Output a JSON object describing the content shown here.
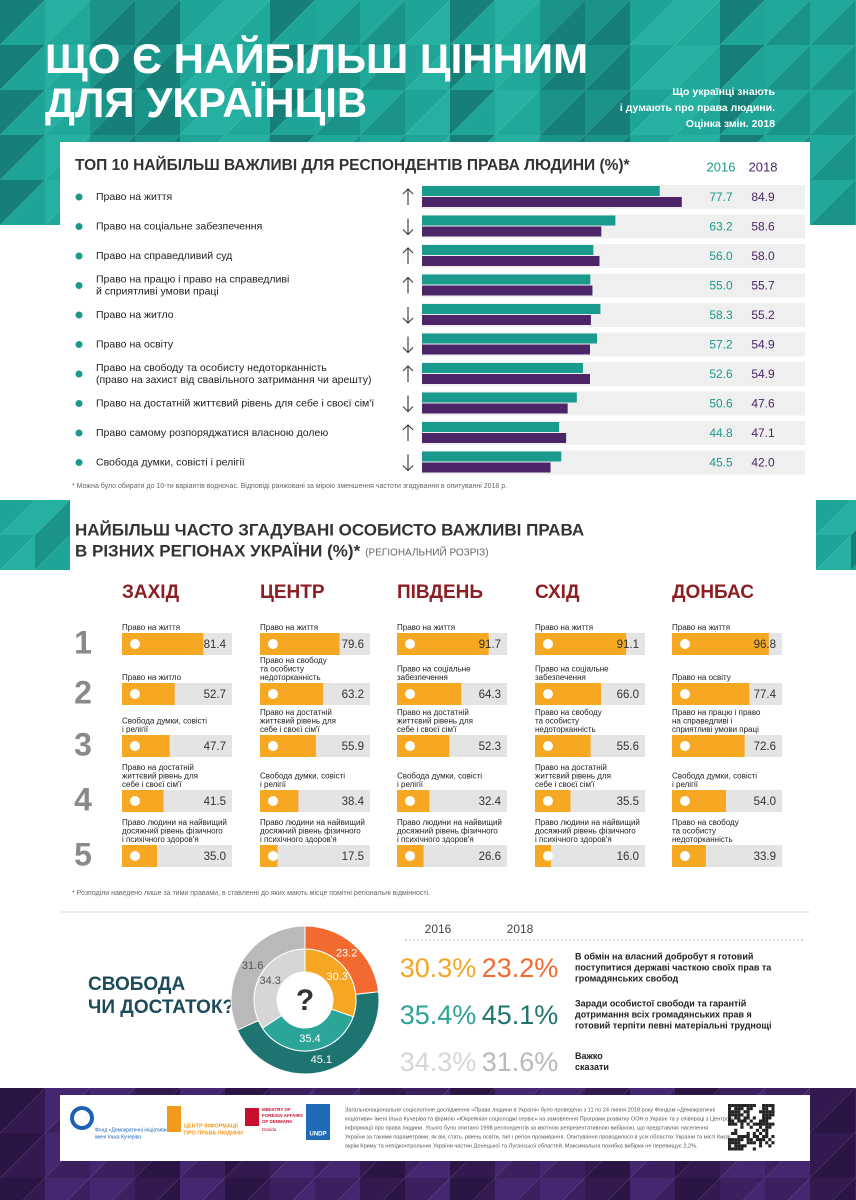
{
  "header": {
    "title": [
      "ЩО Є НАЙБІЛЬШ ЦІННИМ",
      "ДЛЯ УКРАЇНЦІВ"
    ],
    "subtitle": [
      "Що українці знають",
      "і думають про права людини.",
      "Оцінка змін. 2018"
    ]
  },
  "top10": {
    "title": "ТОП 10 НАЙБІЛЬШ ВАЖЛИВІ ДЛЯ РЕСПОНДЕНТІВ ПРАВА ЛЮДИНИ (%)*",
    "years": [
      "2016",
      "2018"
    ],
    "colors": [
      "#1a9a8c",
      "#4b2568"
    ],
    "rows": [
      {
        "label": [
          "Право на життя"
        ],
        "values": [
          77.7,
          84.9
        ],
        "value_labels": [
          "77.7",
          "84.9"
        ]
      },
      {
        "label": [
          "Право на соціальне забезпечення"
        ],
        "values": [
          63.2,
          58.6
        ],
        "value_labels": [
          "63.2",
          "58.6"
        ]
      },
      {
        "label": [
          "Право на справедливий суд"
        ],
        "values": [
          56.0,
          58.0
        ],
        "value_labels": [
          "56.0",
          "58.0"
        ]
      },
      {
        "label": [
          "Право на працю і право на справедливі",
          "й сприятливі умови праці"
        ],
        "values": [
          55.0,
          55.7
        ],
        "value_labels": [
          "55.0",
          "55.7"
        ]
      },
      {
        "label": [
          "Право на житло"
        ],
        "values": [
          58.3,
          55.2
        ],
        "value_labels": [
          "58.3",
          "55.2"
        ]
      },
      {
        "label": [
          "Право на освіту"
        ],
        "values": [
          57.2,
          54.9
        ],
        "value_labels": [
          "57.2",
          "54.9"
        ]
      },
      {
        "label": [
          "Право на свободу та особисту недоторканність",
          "(право на захист від свавільного затримання чи арешту)"
        ],
        "values": [
          52.6,
          54.9
        ],
        "value_labels": [
          "52.6",
          "54.9"
        ]
      },
      {
        "label": [
          "Право на достатній життєвий рівень для себе і своєї сім'ї"
        ],
        "values": [
          50.6,
          47.6
        ],
        "value_labels": [
          "50.6",
          "47.6"
        ]
      },
      {
        "label": [
          "Право самому розпоряджатися власною долею"
        ],
        "values": [
          44.8,
          47.1
        ],
        "value_labels": [
          "44.8",
          "47.1"
        ]
      },
      {
        "label": [
          "Свобода думки, совісті і релігії"
        ],
        "values": [
          45.5,
          42.0
        ],
        "value_labels": [
          "45.5",
          "42.0"
        ]
      }
    ],
    "note": "* Можна було обирати до 10-ти варіантів водночас. Відповіді ранжовані за мірою зменшення частоти згадування в опитуванні 2018 р."
  },
  "regions": {
    "title": [
      "НАЙБІЛЬШ ЧАСТО ЗГАДУВАНІ ОСОБИСТО ВАЖЛИВІ ПРАВА",
      "В РІЗНИХ РЕГІОНАХ УКРАЇНИ (%)*"
    ],
    "subtitle": "(РЕГІОНАЛЬНИЙ РОЗРІЗ)",
    "ranks": [
      1,
      2,
      3,
      4,
      5
    ],
    "columns": [
      {
        "name": "ЗАХІД",
        "items": [
          {
            "label": [
              "Право на життя"
            ],
            "value": 81.4,
            "value_label": "81.4"
          },
          {
            "label": [
              "Право на житло"
            ],
            "value": 52.7,
            "value_label": "52.7"
          },
          {
            "label": [
              "Свобода думки, совісті",
              "і релігії"
            ],
            "value": 47.7,
            "value_label": "47.7"
          },
          {
            "label": [
              "Право на достатній",
              "життєвий рівень для",
              "себе і своєї сім'ї"
            ],
            "value": 41.5,
            "value_label": "41.5"
          },
          {
            "label": [
              "Право людини на найвищий",
              "досяжний рівень фізичного",
              "і психічного здоров'я"
            ],
            "value": 35.0,
            "value_label": "35.0"
          }
        ]
      },
      {
        "name": "ЦЕНТР",
        "items": [
          {
            "label": [
              "Право на життя"
            ],
            "value": 79.6,
            "value_label": "79.6"
          },
          {
            "label": [
              "Право на свободу",
              "та особисту",
              "недоторканність"
            ],
            "value": 63.2,
            "value_label": "63.2"
          },
          {
            "label": [
              "Право на достатній",
              "життєвий рівень для",
              "себе і своєї сім'ї"
            ],
            "value": 55.9,
            "value_label": "55.9"
          },
          {
            "label": [
              "Свобода думки, совісті",
              "і релігії"
            ],
            "value": 38.4,
            "value_label": "38.4"
          },
          {
            "label": [
              "Право людини на найвищий",
              "досяжний рівень фізичного",
              "і психічного здоров'я"
            ],
            "value": 17.5,
            "value_label": "17.5"
          }
        ]
      },
      {
        "name": "ПІВДЕНЬ",
        "items": [
          {
            "label": [
              "Право на життя"
            ],
            "value": 91.7,
            "value_label": "91.7"
          },
          {
            "label": [
              "Право на соціальне",
              "забезпечення"
            ],
            "value": 64.3,
            "value_label": "64.3"
          },
          {
            "label": [
              "Право на достатній",
              "життєвий рівень для",
              "себе і своєї сім'ї"
            ],
            "value": 52.3,
            "value_label": "52.3"
          },
          {
            "label": [
              "Свобода думки, совісті",
              "і релігії"
            ],
            "value": 32.4,
            "value_label": "32.4"
          },
          {
            "label": [
              "Право людини на найвищий",
              "досяжний рівень фізичного",
              "і психічного здоров'я"
            ],
            "value": 26.6,
            "value_label": "26.6"
          }
        ]
      },
      {
        "name": "СХІД",
        "items": [
          {
            "label": [
              "Право на життя"
            ],
            "value": 91.1,
            "value_label": "91.1"
          },
          {
            "label": [
              "Право на соціальне",
              "забезпечення"
            ],
            "value": 66.0,
            "value_label": "66.0"
          },
          {
            "label": [
              "Право на свободу",
              "та особисту",
              "недоторканність"
            ],
            "value": 55.6,
            "value_label": "55.6"
          },
          {
            "label": [
              "Право на достатній",
              "життєвий рівень для",
              "себе і своєї сім'ї"
            ],
            "value": 35.5,
            "value_label": "35.5"
          },
          {
            "label": [
              "Право людини на найвищий",
              "досяжний рівень фізичного",
              "і психічного здоров'я"
            ],
            "value": 16.0,
            "value_label": "16.0"
          }
        ]
      },
      {
        "name": "ДОНБАС",
        "items": [
          {
            "label": [
              "Право на життя"
            ],
            "value": 96.8,
            "value_label": "96.8"
          },
          {
            "label": [
              "Право на освіту"
            ],
            "value": 77.4,
            "value_label": "77.4"
          },
          {
            "label": [
              "Право на працю і право",
              "на справедливі і",
              "сприятливі умови праці"
            ],
            "value": 72.6,
            "value_label": "72.6"
          },
          {
            "label": [
              "Свобода думки, совісті",
              "і релігії"
            ],
            "value": 54.0,
            "value_label": "54.0"
          },
          {
            "label": [
              "Право на свободу",
              "та особисту",
              "недоторканність"
            ],
            "value": 33.9,
            "value_label": "33.9"
          }
        ]
      }
    ],
    "note": "* Розподіли наведено лише за тими правами, в ставленні до яких мають місце помітні регіональні відмінності."
  },
  "freedom": {
    "title": [
      "СВОБОДА",
      "ЧИ ДОСТАТОК?"
    ],
    "center": "?",
    "years": [
      "2016",
      "2018"
    ],
    "options": [
      {
        "text": [
          "В обмін на власний добробут я готовий",
          "поступитися державі часткою своїх прав та",
          "громадянських свобод"
        ],
        "values": [
          30.3,
          23.2
        ],
        "value_labels": [
          "30.3%",
          "23.2%"
        ],
        "colors": [
          "#f5a623",
          "#f26a30"
        ]
      },
      {
        "text": [
          "Заради особистої свободи та гарантій",
          "дотримання всіх громадянських прав я",
          "готовий терпіти певні матеріальні труднощі"
        ],
        "values": [
          35.4,
          45.1
        ],
        "value_labels": [
          "35.4%",
          "45.1%"
        ],
        "colors": [
          "#2aa597",
          "#1e7470"
        ]
      },
      {
        "text": [
          "Важко",
          "сказати"
        ],
        "values": [
          34.3,
          31.6
        ],
        "value_labels": [
          "34.3%",
          "31.6%"
        ],
        "colors": [
          "#d6d6d6",
          "#b9b9b9"
        ]
      }
    ]
  },
  "footer": {
    "logos": [
      "Фонд «Демократичні ініціативи»",
      "імені Ілька Кучеріва",
      "ЦЕНТР ІНФОРМАЦІЇ",
      "ПРО ПРАВА ЛЮДИНИ",
      "MINISTRY OF",
      "FOREIGN AFFAIRS",
      "OF DENMARK",
      "Danida",
      "UNDP"
    ],
    "text": [
      "Загальнонаціональне соціологічне дослідження «Права людини в Україні» було проведено з 11 по 24 липня 2018 року Фондом «Демократичні",
      "ініціативи» імені Ілька Кучеріва та фірмою «Юкрейніан соціолоджі сервіс» на замовлення Програми розвитку ООН в Україні та у співпраці з Центром",
      "інформації про права людини. Усього було опитано 1998 респондентів за квотною репрезентативною вибіркою, що представляє населення",
      "України за такими параметрами, як вік, стать, рівень освіти, тип і регіон проживання. Опитування проводилося в усіх областях України та місті Києві,",
      "окрім Криму та непідконтрольних України частин Донецької та Луганської областей. Максимальна похибка вибірки не перевищує 2,2%."
    ]
  }
}
